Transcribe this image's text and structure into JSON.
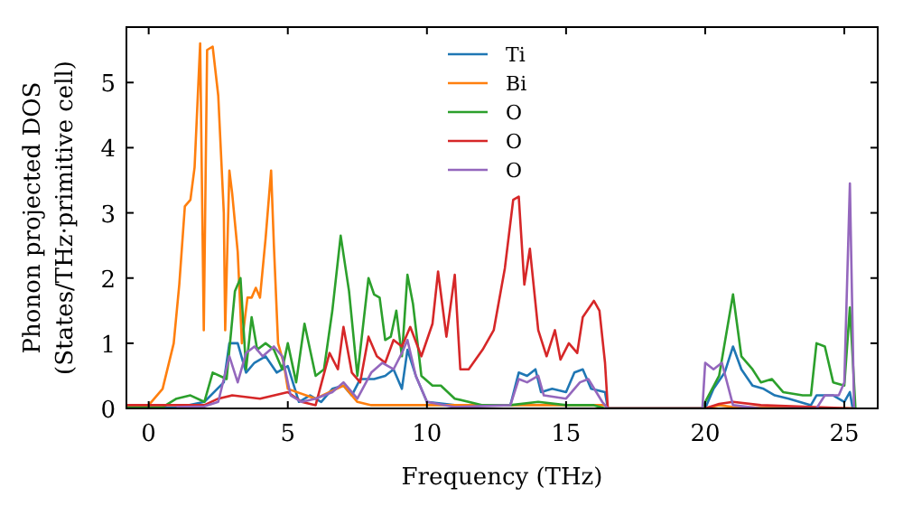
{
  "chart_data": {
    "type": "line",
    "xlabel": "Frequency (THz)",
    "ylabel": "Phonon projected DOS\n(States/THz·primitive cell)",
    "xlim": [
      -0.8,
      26.2
    ],
    "ylim": [
      0,
      5.85
    ],
    "xticks": [
      0,
      5,
      10,
      15,
      20,
      25
    ],
    "yticks": [
      0,
      1,
      2,
      3,
      4,
      5
    ],
    "legend": "top",
    "grid": false,
    "marker": "none",
    "line_style": "solid",
    "series": [
      {
        "name": "Ti",
        "color": "#1f77b4",
        "x": [
          -0.8,
          1,
          2,
          2.7,
          2.9,
          3.2,
          3.5,
          3.8,
          4.2,
          4.6,
          5.0,
          5.4,
          5.8,
          6.2,
          6.6,
          7.0,
          7.3,
          7.6,
          8.1,
          8.5,
          8.8,
          9.1,
          9.3,
          9.6,
          10,
          11,
          13,
          13.3,
          13.6,
          13.9,
          14.1,
          14.5,
          15,
          15.3,
          15.6,
          15.9,
          16.4,
          16.5,
          20,
          20.3,
          20.7,
          21,
          21.3,
          21.7,
          22.1,
          22.5,
          23,
          23.8,
          24,
          24.6,
          25,
          25.2,
          25.3
        ],
        "values": [
          0.01,
          0.01,
          0.1,
          0.4,
          1.0,
          1.0,
          0.55,
          0.7,
          0.8,
          0.55,
          0.65,
          0.1,
          0.2,
          0.1,
          0.3,
          0.35,
          0.2,
          0.45,
          0.45,
          0.5,
          0.6,
          0.3,
          0.9,
          0.5,
          0.1,
          0.05,
          0.05,
          0.55,
          0.5,
          0.6,
          0.25,
          0.3,
          0.25,
          0.55,
          0.6,
          0.3,
          0.25,
          0,
          0,
          0.3,
          0.55,
          0.95,
          0.6,
          0.35,
          0.3,
          0.2,
          0.15,
          0.05,
          0.2,
          0.2,
          0.1,
          0.25,
          0
        ]
      },
      {
        "name": "Bi",
        "color": "#ff7f0e",
        "x": [
          -0.8,
          0,
          0.5,
          0.9,
          1.1,
          1.3,
          1.5,
          1.65,
          1.85,
          1.98,
          2.1,
          2.3,
          2.5,
          2.7,
          2.75,
          2.9,
          3.0,
          3.2,
          3.35,
          3.55,
          3.7,
          3.85,
          4.0,
          4.2,
          4.4,
          4.5,
          4.65,
          4.85,
          5.0,
          6,
          7,
          7.5,
          8,
          10,
          16.4,
          16.5,
          20,
          20.5,
          21,
          25.3
        ],
        "values": [
          0.05,
          0.05,
          0.3,
          1.0,
          1.9,
          3.1,
          3.2,
          3.7,
          5.6,
          1.2,
          5.5,
          5.55,
          4.8,
          3.0,
          1.2,
          3.65,
          3.3,
          2.4,
          1.0,
          1.7,
          1.7,
          1.85,
          1.7,
          2.6,
          3.65,
          2.5,
          1.0,
          0.7,
          0.3,
          0.15,
          0.35,
          0.1,
          0.05,
          0.05,
          0.05,
          0,
          0,
          0.05,
          0.02,
          0
        ]
      },
      {
        "name": "O",
        "color": "#2ca02c",
        "x": [
          -0.8,
          0.5,
          1,
          1.5,
          2,
          2.3,
          2.8,
          3.1,
          3.3,
          3.5,
          3.7,
          3.9,
          4.2,
          4.5,
          4.8,
          5.0,
          5.3,
          5.6,
          6.0,
          6.3,
          6.6,
          6.9,
          7.2,
          7.5,
          7.9,
          8.1,
          8.3,
          8.5,
          8.7,
          8.9,
          9.1,
          9.3,
          9.5,
          9.8,
          10.2,
          10.5,
          11,
          12,
          13,
          14,
          15,
          16,
          16.4,
          19.9,
          20,
          20.5,
          21,
          21.3,
          21.7,
          22,
          22.4,
          22.8,
          23.5,
          23.8,
          24,
          24.3,
          24.6,
          25,
          25.2,
          25.4
        ],
        "values": [
          0.02,
          0.02,
          0.15,
          0.2,
          0.1,
          0.55,
          0.45,
          1.8,
          2.0,
          0.6,
          1.4,
          0.9,
          1.0,
          0.9,
          0.6,
          1.0,
          0.4,
          1.3,
          0.5,
          0.6,
          1.5,
          2.65,
          1.8,
          0.5,
          2.0,
          1.75,
          1.7,
          1.05,
          1.1,
          1.5,
          0.8,
          2.05,
          1.6,
          0.5,
          0.35,
          0.35,
          0.15,
          0.05,
          0.05,
          0.1,
          0.05,
          0.05,
          0,
          0,
          0.1,
          0.5,
          1.75,
          0.8,
          0.6,
          0.4,
          0.45,
          0.25,
          0.2,
          0.2,
          1.0,
          0.95,
          0.4,
          0.35,
          1.55,
          0
        ]
      },
      {
        "name": "O",
        "color": "#d62728",
        "x": [
          -0.8,
          2,
          2.5,
          3,
          4,
          5,
          5.5,
          6,
          6.5,
          6.8,
          7.0,
          7.3,
          7.6,
          7.9,
          8.2,
          8.5,
          8.8,
          9.1,
          9.4,
          9.8,
          10.2,
          10.4,
          10.7,
          11.0,
          11.2,
          11.5,
          12,
          12.4,
          12.8,
          13.1,
          13.3,
          13.5,
          13.7,
          14.0,
          14.3,
          14.6,
          14.8,
          15.1,
          15.4,
          15.6,
          16.0,
          16.2,
          16.4,
          16.5,
          20,
          20.5,
          21,
          22,
          25.3
        ],
        "values": [
          0.05,
          0.05,
          0.15,
          0.2,
          0.15,
          0.25,
          0.1,
          0.05,
          0.85,
          0.6,
          1.25,
          0.55,
          0.4,
          1.1,
          0.8,
          0.7,
          1.05,
          0.95,
          1.25,
          0.8,
          1.3,
          2.1,
          1.1,
          2.05,
          0.6,
          0.6,
          0.9,
          1.2,
          2.15,
          3.2,
          3.25,
          1.9,
          2.45,
          1.2,
          0.8,
          1.2,
          0.75,
          1.0,
          0.85,
          1.4,
          1.65,
          1.5,
          0.7,
          0,
          0,
          0.07,
          0.1,
          0.05,
          0
        ]
      },
      {
        "name": "O",
        "color": "#9467bd",
        "x": [
          1,
          2,
          2.5,
          2.9,
          3.2,
          3.5,
          3.8,
          4.1,
          4.5,
          4.8,
          5.1,
          5.5,
          6,
          6.6,
          7.0,
          7.5,
          8,
          8.4,
          8.8,
          9.1,
          9.3,
          9.6,
          10,
          11,
          13,
          13.3,
          13.6,
          14,
          14.2,
          15,
          15.5,
          15.8,
          16.3,
          16.5,
          19.9,
          20,
          20.3,
          20.6,
          21,
          22,
          24,
          24.3,
          24.8,
          25,
          25.2,
          25.35
        ],
        "values": [
          0.02,
          0.03,
          0.1,
          0.8,
          0.4,
          0.85,
          0.95,
          0.8,
          0.95,
          0.8,
          0.2,
          0.1,
          0.15,
          0.25,
          0.4,
          0.15,
          0.55,
          0.7,
          0.6,
          0.85,
          1.05,
          0.5,
          0.1,
          0.02,
          0.05,
          0.45,
          0.4,
          0.5,
          0.2,
          0.15,
          0.4,
          0.45,
          0.1,
          0,
          0,
          0.7,
          0.6,
          0.7,
          0.05,
          0,
          0,
          0.2,
          0.2,
          0.4,
          3.45,
          0
        ]
      }
    ]
  }
}
